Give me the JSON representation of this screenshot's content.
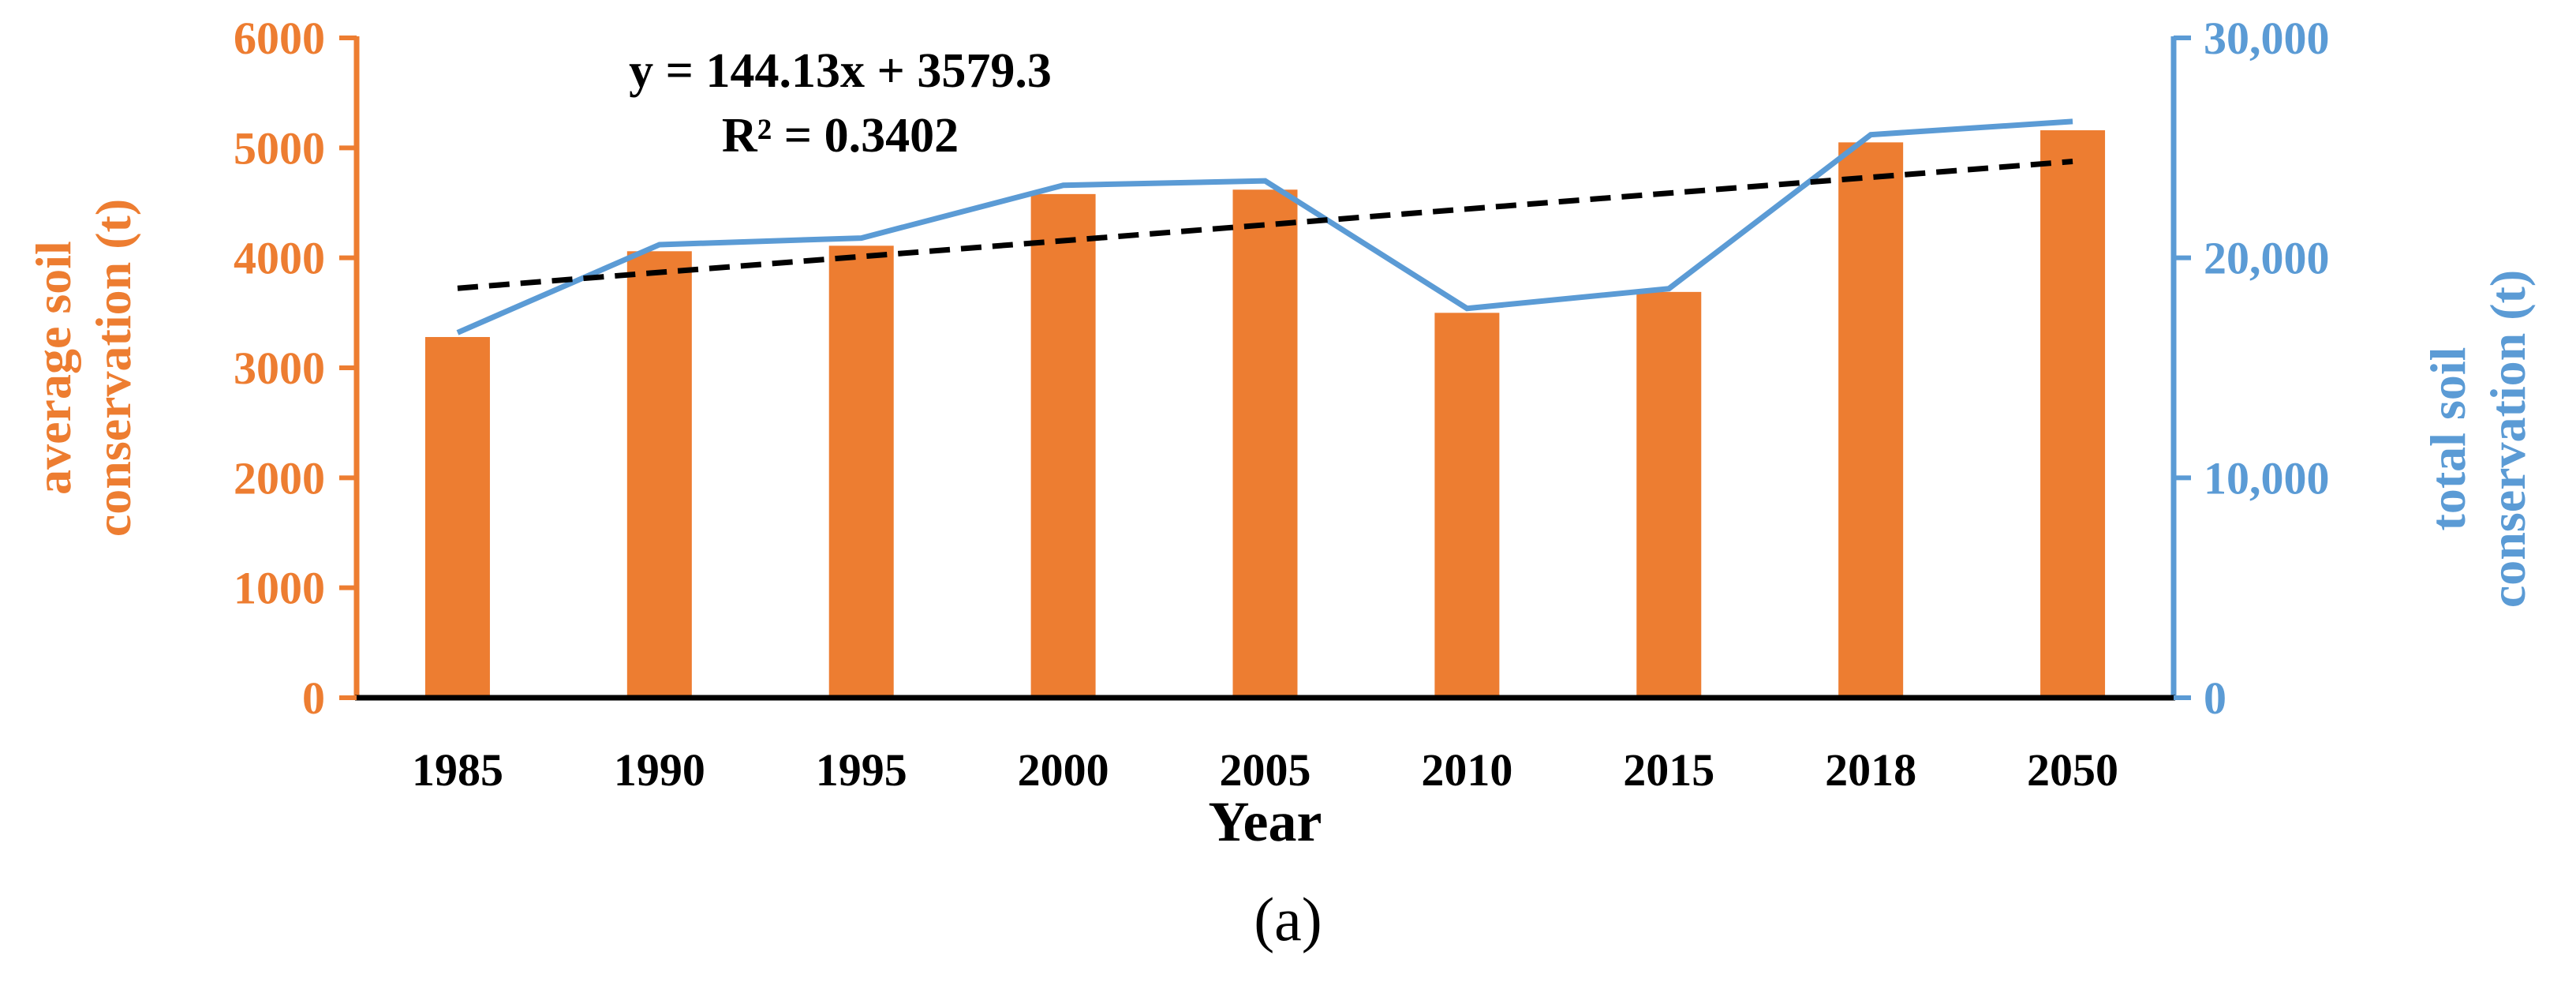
{
  "colors": {
    "bar": "#ED7D31",
    "line": "#5B9BD5",
    "trend": "#000000",
    "axis": "#000000"
  },
  "chart_data": {
    "type": "bar",
    "categories": [
      "1985",
      "1990",
      "1995",
      "2000",
      "2005",
      "2010",
      "2015",
      "2018",
      "2050"
    ],
    "xlabel": "Year",
    "series": [
      {
        "name": "average soil conservation (t)",
        "type": "bar",
        "axis": "left",
        "values": [
          3280,
          4060,
          4110,
          4580,
          4620,
          3500,
          3690,
          5050,
          5160
        ]
      },
      {
        "name": "total soil conservation (t)",
        "type": "line",
        "axis": "right",
        "values": [
          16600,
          20600,
          20900,
          23300,
          23500,
          17700,
          18600,
          25600,
          26200
        ]
      }
    ],
    "trendline": {
      "style": "dashed",
      "slope": 144.13,
      "intercept": 3579.3,
      "equation": "y = 144.13x + 3579.3",
      "r2": "R² = 0.3402"
    },
    "y_left": {
      "label_line1": "average soil",
      "label_line2": "conservation (t)",
      "lim": [
        0,
        6000
      ],
      "ticks": [
        0,
        1000,
        2000,
        3000,
        4000,
        5000,
        6000
      ],
      "tick_labels": [
        "0",
        "1000",
        "2000",
        "3000",
        "4000",
        "5000",
        "6000"
      ]
    },
    "y_right": {
      "label_line1": "total soil",
      "label_line2": "conservation (t)",
      "lim": [
        0,
        30000
      ],
      "ticks": [
        0,
        10000,
        20000,
        30000
      ],
      "tick_labels": [
        "0",
        "10,000",
        "20,000",
        "30,000"
      ]
    },
    "grid": false,
    "legend": "none"
  },
  "caption": "(a)"
}
